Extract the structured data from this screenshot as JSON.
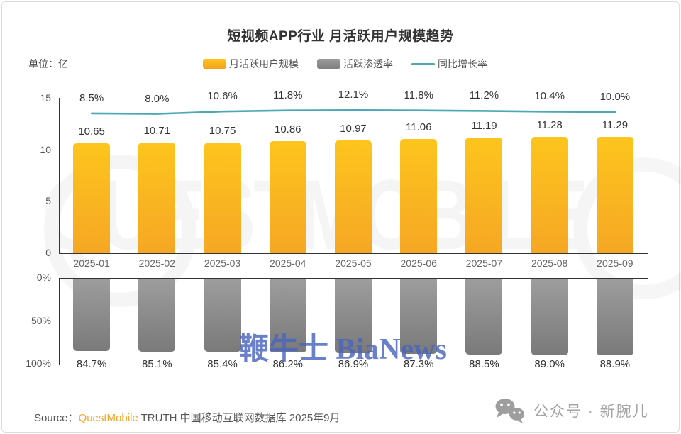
{
  "header": {
    "title": "短视频APP行业 月活跃用户规模趋势",
    "unit_label": "单位：亿"
  },
  "legend": {
    "items": [
      {
        "label": "月活跃用户规模",
        "type": "bar",
        "color": "#f8b921"
      },
      {
        "label": "活跃渗透率",
        "type": "bar",
        "color": "#8c8c8c"
      },
      {
        "label": "同比增长率",
        "type": "line",
        "color": "#4ba8b4"
      }
    ]
  },
  "chart_data": {
    "type": "bar",
    "title": "短视频APP行业 月活跃用户规模趋势",
    "categories": [
      "2025-01",
      "2025-02",
      "2025-03",
      "2025-04",
      "2025-05",
      "2025-06",
      "2025-07",
      "2025-08",
      "2025-09"
    ],
    "series": [
      {
        "name": "月活跃用户规模",
        "type": "bar",
        "axis": "top",
        "unit": "亿",
        "values": [
          10.65,
          10.71,
          10.75,
          10.86,
          10.97,
          11.06,
          11.19,
          11.28,
          11.29
        ],
        "labels": [
          "10.65",
          "10.71",
          "10.75",
          "10.86",
          "10.97",
          "11.06",
          "11.19",
          "11.28",
          "11.29"
        ],
        "color_top": "#fdc51d",
        "color_bottom": "#f6a724"
      },
      {
        "name": "活跃渗透率",
        "type": "bar",
        "axis": "bottom",
        "unit": "%",
        "values": [
          84.7,
          85.1,
          85.4,
          86.2,
          86.9,
          87.3,
          88.5,
          89.0,
          88.9
        ],
        "labels": [
          "84.7%",
          "85.1%",
          "85.4%",
          "86.2%",
          "86.9%",
          "87.3%",
          "88.5%",
          "89.0%",
          "88.9%"
        ],
        "color_top": "#9d9d9d",
        "color_bottom": "#7a7a7a"
      },
      {
        "name": "同比增长率",
        "type": "line",
        "axis": "top",
        "unit": "%",
        "values": [
          8.5,
          8.0,
          10.6,
          11.8,
          12.1,
          11.8,
          11.2,
          10.4,
          10.0
        ],
        "labels": [
          "8.5%",
          "8.0%",
          "10.6%",
          "11.8%",
          "12.1%",
          "11.8%",
          "11.2%",
          "10.4%",
          "10.0%"
        ],
        "color": "#4ba8b4"
      }
    ],
    "top_axis": {
      "ticks": [
        0,
        5,
        10,
        15
      ],
      "tick_labels": [
        "0",
        "5",
        "10",
        "15"
      ],
      "range": [
        0,
        15
      ]
    },
    "bottom_axis": {
      "ticks": [
        0,
        50,
        100
      ],
      "tick_labels": [
        "0%",
        "50%",
        "100%"
      ],
      "range": [
        0,
        100
      ],
      "inverted": true
    },
    "grid": false,
    "legend_position": "top"
  },
  "watermarks": {
    "center_text": "鞭牛士 BiaNews",
    "background_text": "QUESTMOBILE"
  },
  "footer": {
    "source_prefix": "Source：",
    "source_brand": "QuestMobile",
    "source_rest": " TRUTH 中国移动互联网数据库 2025年9月",
    "wechat_label": "公众号 · 新腕儿"
  },
  "colors": {
    "bar_yellow_top": "#fdc51d",
    "bar_yellow_bottom": "#f6a724",
    "bar_gray_top": "#9d9d9d",
    "bar_gray_bottom": "#7a7a7a",
    "line_teal": "#4ba8b4",
    "brand_orange": "#f5a623",
    "watermark_blue": "#4964be",
    "title_text": "#333333"
  }
}
